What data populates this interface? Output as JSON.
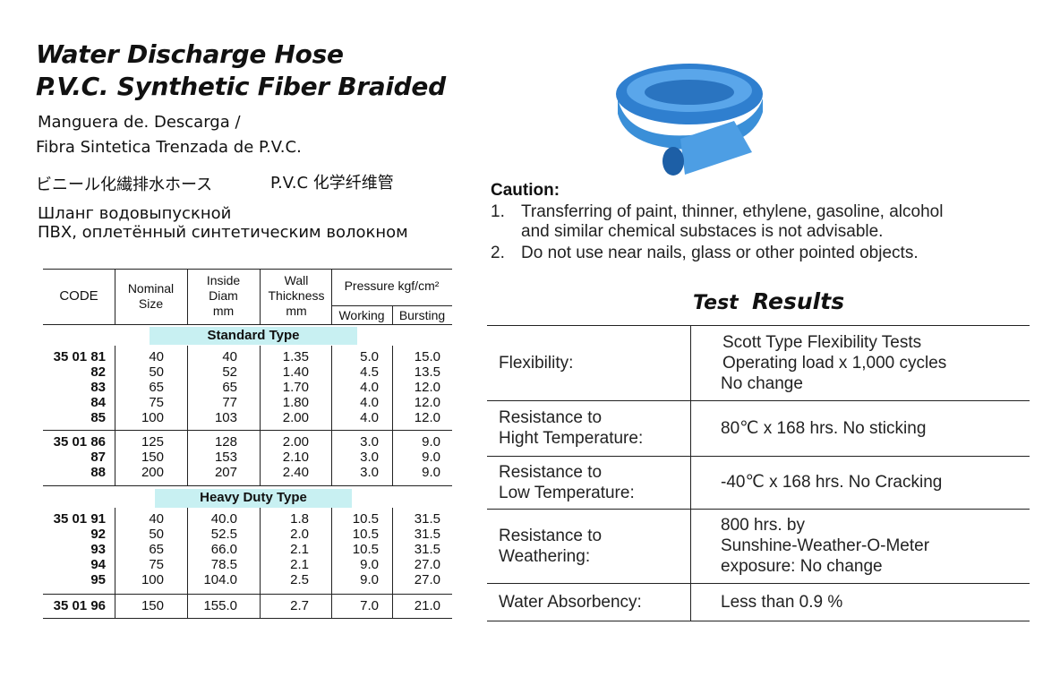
{
  "title": {
    "line1": "Water Discharge Hose",
    "line2": "P.V.C. Synthetic Fiber Braided"
  },
  "subtitles": {
    "es1": "Manguera de. Descarga /",
    "es2": "Fibra Sintetica Trenzada de P.V.C.",
    "jp": "ビニール化繊排水ホース",
    "cn": "P.V.C 化学纤维管",
    "ru1": "Шланг водовыпускной",
    "ru2": "ПВХ, оплетённый синтетическим волокном"
  },
  "table": {
    "headers": {
      "code": "CODE",
      "nominal": [
        "Nominal",
        "Size"
      ],
      "inside": [
        "Inside",
        "Diam",
        "mm"
      ],
      "wall": [
        "Wall",
        "Thickness",
        "mm"
      ],
      "pressure": "Pressure kgf/cm²",
      "working": "Working",
      "bursting": "Bursting"
    },
    "standard_label": "Standard Type",
    "heavy_label": "Heavy Duty Type",
    "groups": [
      [
        [
          "35 01 81",
          "40",
          "40",
          "1.35",
          "5.0",
          "15.0"
        ],
        [
          "82",
          "50",
          "52",
          "1.40",
          "4.5",
          "13.5"
        ],
        [
          "83",
          "65",
          "65",
          "1.70",
          "4.0",
          "12.0"
        ],
        [
          "84",
          "75",
          "77",
          "1.80",
          "4.0",
          "12.0"
        ],
        [
          "85",
          "100",
          "103",
          "2.00",
          "4.0",
          "12.0"
        ]
      ],
      [
        [
          "35 01 86",
          "125",
          "128",
          "2.00",
          "3.0",
          "9.0"
        ],
        [
          "87",
          "150",
          "153",
          "2.10",
          "3.0",
          "9.0"
        ],
        [
          "88",
          "200",
          "207",
          "2.40",
          "3.0",
          "9.0"
        ]
      ],
      [
        [
          "35 01 91",
          "40",
          "40.0",
          "1.8",
          "10.5",
          "31.5"
        ],
        [
          "92",
          "50",
          "52.5",
          "2.0",
          "10.5",
          "31.5"
        ],
        [
          "93",
          "65",
          "66.0",
          "2.1",
          "10.5",
          "31.5"
        ],
        [
          "94",
          "75",
          "78.5",
          "2.1",
          "9.0",
          "27.0"
        ],
        [
          "95",
          "100",
          "104.0",
          "2.5",
          "9.0",
          "27.0"
        ]
      ],
      [
        [
          "35 01 96",
          "150",
          "155.0",
          "2.7",
          "7.0",
          "21.0"
        ]
      ]
    ]
  },
  "caution": {
    "title": "Caution:",
    "items": [
      [
        "1.",
        "Transferring of paint, thinner, ethylene, gasoline, alcohol",
        "and similar chemical substaces is not advisable."
      ],
      [
        "2.",
        "Do not use near nails, glass or other pointed objects."
      ]
    ]
  },
  "tests": {
    "title_a": "Test",
    "title_b": "Results",
    "rows": [
      {
        "label": [
          "Flexibility:"
        ],
        "value": [
          "Scott Type Flexibility Tests",
          "Operating load x 1,000 cycles",
          "No change"
        ]
      },
      {
        "label": [
          "Resistance to",
          "Hight Temperature:"
        ],
        "value": [
          "80℃ x 168 hrs. No sticking"
        ]
      },
      {
        "label": [
          "Resistance to",
          "Low Temperature:"
        ],
        "value": [
          "-40℃ x 168 hrs.  No Cracking"
        ]
      },
      {
        "label": [
          "Resistance to",
          "Weathering:"
        ],
        "value": [
          "800 hrs. by",
          "Sunshine-Weather-O-Meter",
          "exposure: No change"
        ]
      },
      {
        "label": [
          "Water Absorbency:"
        ],
        "value": [
          "Less than 0.9 %"
        ]
      }
    ]
  },
  "colors": {
    "band": "#c8f0f2",
    "hose": "#3a8fd8"
  }
}
